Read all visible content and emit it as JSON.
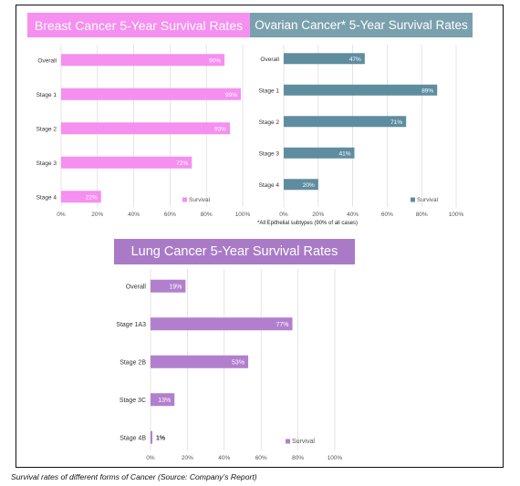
{
  "caption": "Survival rates of different forms of Cancer (Source: Company's Report)",
  "footnote": "*All Epithelial subtypes (90% of all cases)",
  "chart_data": [
    {
      "type": "bar",
      "orientation": "horizontal",
      "title": "Breast Cancer 5-Year Survival Rates",
      "categories": [
        "Overall",
        "Stage 1",
        "Stage 2",
        "Stage 3",
        "Stage 4"
      ],
      "series": [
        {
          "name": "Survival",
          "values": [
            90,
            99,
            93,
            72,
            22
          ]
        }
      ],
      "data_labels": [
        "90%",
        "99%",
        "93%",
        "72%",
        "22%"
      ],
      "xlim": [
        0,
        100
      ],
      "xticks": [
        "0%",
        "20%",
        "40%",
        "60%",
        "80%",
        "100%"
      ],
      "legend": "bottom-right",
      "grid": true,
      "colors": {
        "title_bg": "#f58ff0",
        "bar": "#f58ff0",
        "label": "#ffffff"
      }
    },
    {
      "type": "bar",
      "orientation": "horizontal",
      "title": "Ovarian Cancer* 5-Year Survival Rates",
      "categories": [
        "Overall",
        "Stage 1",
        "Stage 2",
        "Stage 3",
        "Stage 4"
      ],
      "series": [
        {
          "name": "Survival",
          "values": [
            47,
            89,
            71,
            41,
            20
          ]
        }
      ],
      "data_labels": [
        "47%",
        "89%",
        "71%",
        "41%",
        "20%"
      ],
      "xlim": [
        0,
        100
      ],
      "xticks": [
        "0%",
        "20%",
        "40%",
        "60%",
        "80%",
        "100%"
      ],
      "legend": "bottom-right",
      "grid": true,
      "colors": {
        "title_bg": "#7aa0ae",
        "bar": "#5f8da0",
        "label": "#ffffff"
      }
    },
    {
      "type": "bar",
      "orientation": "horizontal",
      "title": "Lung Cancer 5-Year Survival Rates",
      "categories": [
        "Overall",
        "Stage 1A3",
        "Stage 2B",
        "Stage 3C",
        "Stage 4B"
      ],
      "series": [
        {
          "name": "Survival",
          "values": [
            19,
            77,
            53,
            13,
            1
          ]
        }
      ],
      "data_labels": [
        "19%",
        "77%",
        "53%",
        "13%",
        "1%"
      ],
      "xlim": [
        0,
        100
      ],
      "xticks": [
        "0%",
        "20%",
        "40%",
        "60%",
        "80%",
        "100%"
      ],
      "legend": "bottom-right",
      "grid": true,
      "colors": {
        "title_bg": "#a97bc7",
        "bar": "#b27fce",
        "label": "#ffffff"
      }
    }
  ]
}
